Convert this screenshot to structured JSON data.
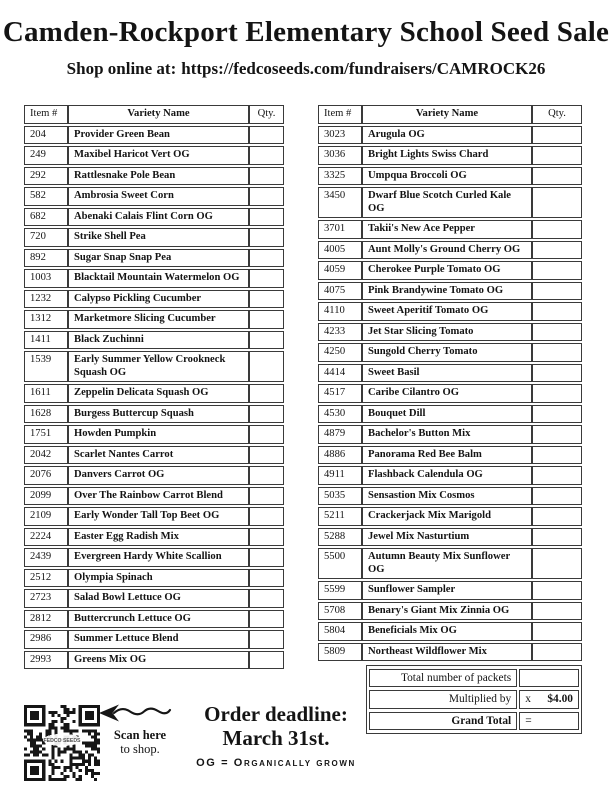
{
  "page": {
    "title": "Camden-Rockport Elementary School Seed Sale",
    "subtitle_prefix": "Shop online at:",
    "shop_url": "https://fedcoseeds.com/fundraisers/CAMROCK26"
  },
  "table_headers": {
    "item": "Item #",
    "variety": "Variety Name",
    "qty": "Qty."
  },
  "tables": [
    {
      "rows": [
        {
          "item": "204",
          "name": "Provider Green Bean"
        },
        {
          "item": "249",
          "name": "Maxibel Haricot Vert OG"
        },
        {
          "item": "292",
          "name": "Rattlesnake Pole Bean"
        },
        {
          "item": "582",
          "name": "Ambrosia Sweet Corn"
        },
        {
          "item": "682",
          "name": "Abenaki Calais Flint Corn OG"
        },
        {
          "item": "720",
          "name": "Strike Shell Pea"
        },
        {
          "item": "892",
          "name": "Sugar Snap Snap Pea"
        },
        {
          "item": "1003",
          "name": "Blacktail Mountain Watermelon OG"
        },
        {
          "item": "1232",
          "name": "Calypso Pickling Cucumber"
        },
        {
          "item": "1312",
          "name": "Marketmore Slicing Cucumber"
        },
        {
          "item": "1411",
          "name": "Black Zuchinni"
        },
        {
          "item": "1539",
          "name": "Early Summer Yellow Crookneck Squash OG"
        },
        {
          "item": "1611",
          "name": "Zeppelin Delicata Squash OG"
        },
        {
          "item": "1628",
          "name": "Burgess Buttercup Squash"
        },
        {
          "item": "1751",
          "name": "Howden Pumpkin"
        },
        {
          "item": "2042",
          "name": "Scarlet Nantes Carrot"
        },
        {
          "item": "2076",
          "name": "Danvers Carrot OG"
        },
        {
          "item": "2099",
          "name": "Over The Rainbow Carrot Blend"
        },
        {
          "item": "2109",
          "name": "Early Wonder Tall Top Beet OG"
        },
        {
          "item": "2224",
          "name": "Easter Egg Radish Mix"
        },
        {
          "item": "2439",
          "name": "Evergreen Hardy White Scallion"
        },
        {
          "item": "2512",
          "name": "Olympia Spinach"
        },
        {
          "item": "2723",
          "name": "Salad Bowl Lettuce OG"
        },
        {
          "item": "2812",
          "name": "Buttercrunch Lettuce OG"
        },
        {
          "item": "2986",
          "name": "Summer Lettuce Blend"
        },
        {
          "item": "2993",
          "name": "Greens Mix OG"
        }
      ]
    },
    {
      "rows": [
        {
          "item": "3023",
          "name": "Arugula OG"
        },
        {
          "item": "3036",
          "name": "Bright Lights Swiss Chard"
        },
        {
          "item": "3325",
          "name": "Umpqua Broccoli OG"
        },
        {
          "item": "3450",
          "name": "Dwarf Blue Scotch Curled Kale OG"
        },
        {
          "item": "3701",
          "name": "Takii's New Ace Pepper"
        },
        {
          "item": "4005",
          "name": "Aunt Molly's Ground Cherry OG"
        },
        {
          "item": "4059",
          "name": "Cherokee Purple Tomato OG"
        },
        {
          "item": "4075",
          "name": "Pink Brandywine Tomato OG"
        },
        {
          "item": "4110",
          "name": "Sweet Aperitif Tomato OG"
        },
        {
          "item": "4233",
          "name": "Jet Star Slicing Tomato"
        },
        {
          "item": "4250",
          "name": "Sungold Cherry Tomato"
        },
        {
          "item": "4414",
          "name": "Sweet Basil"
        },
        {
          "item": "4517",
          "name": "Caribe Cilantro OG"
        },
        {
          "item": "4530",
          "name": "Bouquet Dill"
        },
        {
          "item": "4879",
          "name": "Bachelor's Button Mix"
        },
        {
          "item": "4886",
          "name": "Panorama Red Bee Balm"
        },
        {
          "item": "4911",
          "name": "Flashback Calendula OG"
        },
        {
          "item": "5035",
          "name": "Sensastion Mix Cosmos"
        },
        {
          "item": "5211",
          "name": "Crackerjack Mix Marigold"
        },
        {
          "item": "5288",
          "name": "Jewel Mix Nasturtium"
        },
        {
          "item": "5500",
          "name": "Autumn Beauty Mix Sunflower OG"
        },
        {
          "item": "5599",
          "name": "Sunflower Sampler"
        },
        {
          "item": "5708",
          "name": "Benary's Giant Mix Zinnia OG"
        },
        {
          "item": "5804",
          "name": "Beneficials Mix OG"
        },
        {
          "item": "5809",
          "name": "Northeast Wildflower Mix"
        }
      ]
    }
  ],
  "totals": {
    "packets_label": "Total number of packets",
    "multiplied_label": "Multiplied by",
    "multiply_symbol": "x",
    "price": "$4.00",
    "grand_label": "Grand Total",
    "equals_symbol": "="
  },
  "footer": {
    "scan_line1": "Scan here",
    "scan_line2": "to shop.",
    "deadline_line1": "Order deadline:",
    "deadline_line2": "March 31st.",
    "og_note": "OG = Organically grown",
    "qr_label": "FEDCO SEEDS"
  },
  "colors": {
    "ink": "#141414",
    "border": "#3a3a3a"
  }
}
